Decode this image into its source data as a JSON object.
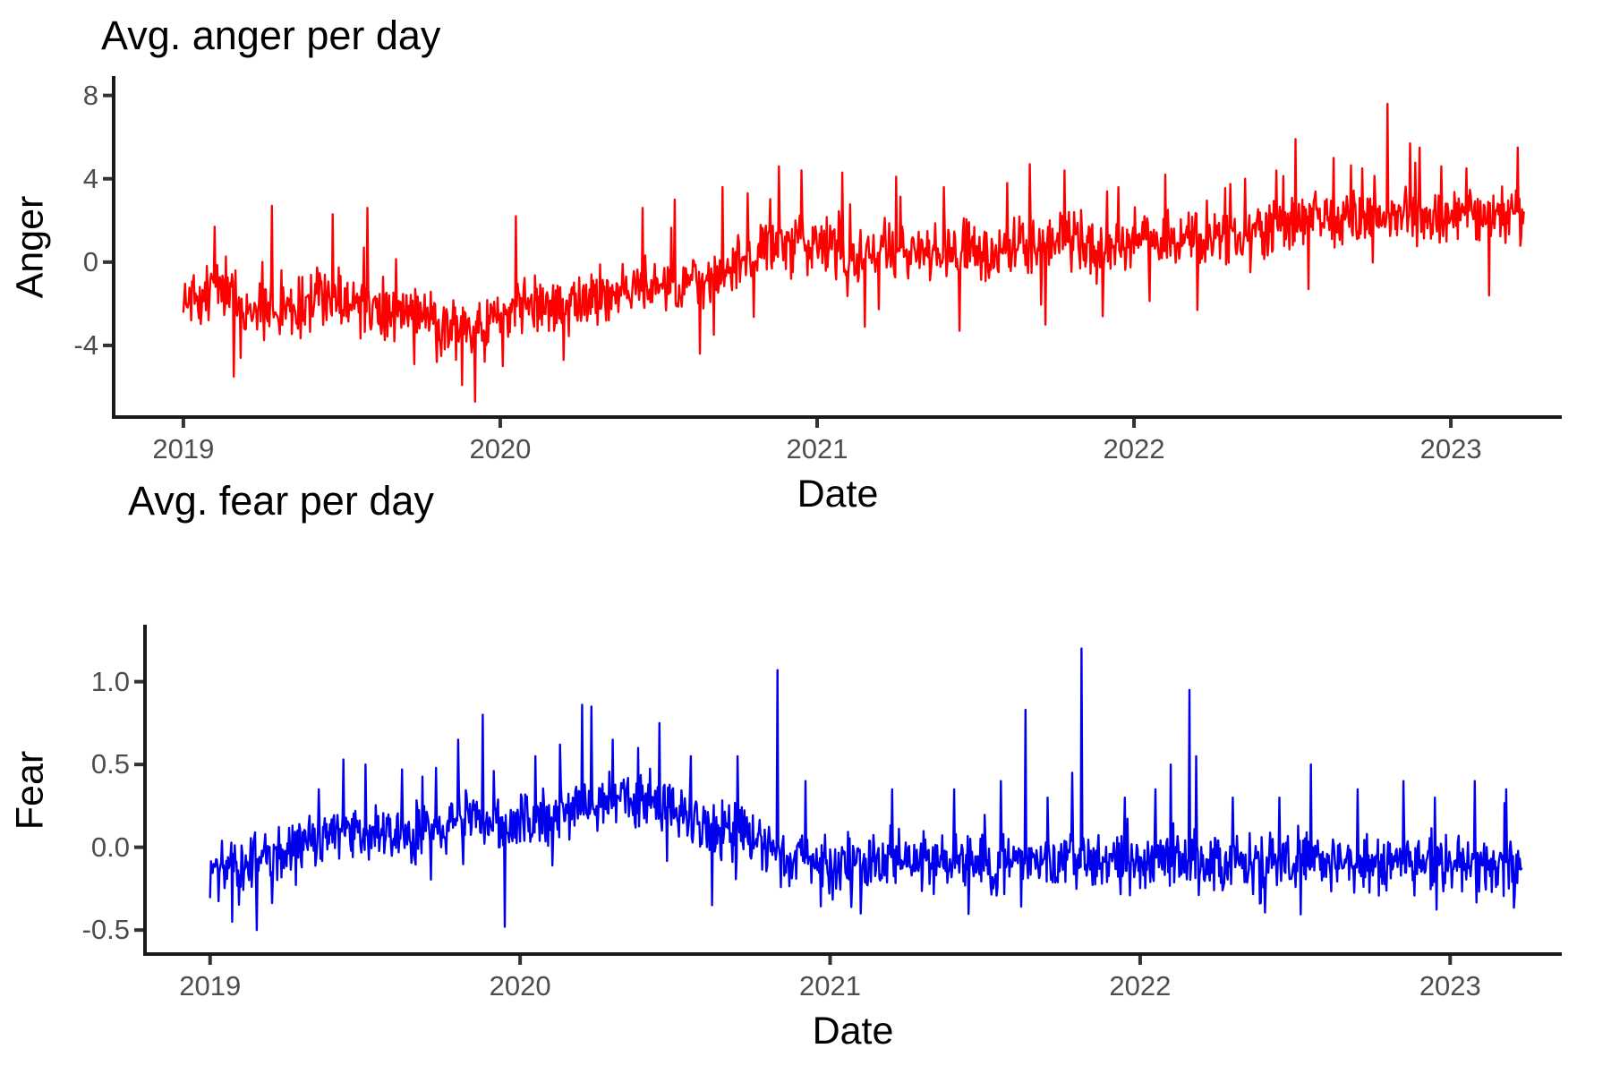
{
  "figure": {
    "background": "#ffffff",
    "axis_line_color": "#1a1a1a",
    "tick_mark_color": "#333333",
    "tick_label_color": "#4d4d4d",
    "text_color": "#000000"
  },
  "chart_data": [
    {
      "id": "anger",
      "type": "line",
      "title": "Avg. anger per day",
      "xlabel": "Date",
      "ylabel": "Anger",
      "line_color": "#ff0000",
      "grid": false,
      "legend": "none",
      "x_ticks": [
        "2019",
        "2020",
        "2021",
        "2022",
        "2023"
      ],
      "x_tick_values": [
        2019,
        2020,
        2021,
        2022,
        2023
      ],
      "y_ticks": [
        "8",
        "4",
        "0",
        "-4"
      ],
      "y_tick_values": [
        8,
        4,
        0,
        -4
      ],
      "x_domain": [
        2018.78,
        2023.35
      ],
      "ylim": [
        -7.44,
        8.93
      ],
      "x_range_years": [
        2019.0,
        2023.23
      ],
      "sampling": "daily",
      "monthly_mean": {
        "start": "2019-01",
        "values": [
          -1.7,
          -1.0,
          -2.6,
          -2.0,
          -2.3,
          -1.5,
          -1.8,
          -2.1,
          -2.4,
          -2.8,
          -3.0,
          -3.3,
          -2.0,
          -1.8,
          -2.3,
          -1.9,
          -1.4,
          -1.1,
          -0.8,
          -1.1,
          -0.4,
          0.3,
          1.0,
          0.8,
          0.7,
          0.4,
          0.8,
          0.4,
          0.5,
          0.7,
          0.5,
          0.9,
          0.9,
          1.1,
          0.7,
          0.9,
          1.1,
          1.4,
          1.3,
          1.2,
          1.4,
          1.6,
          1.9,
          1.9,
          2.1,
          2.3,
          2.2,
          2.0,
          2.1,
          2.2,
          2.3
        ]
      },
      "extremes": [
        [
          2019.1,
          1.7
        ],
        [
          2019.16,
          -5.5
        ],
        [
          2019.18,
          -4.6
        ],
        [
          2019.28,
          2.7
        ],
        [
          2019.47,
          2.3
        ],
        [
          2019.58,
          2.6
        ],
        [
          2019.73,
          -4.9
        ],
        [
          2019.8,
          -4.8
        ],
        [
          2019.88,
          -5.9
        ],
        [
          2019.92,
          -6.7
        ],
        [
          2020.05,
          2.2
        ],
        [
          2020.2,
          -4.7
        ],
        [
          2020.45,
          2.6
        ],
        [
          2020.55,
          3.0
        ],
        [
          2020.63,
          -4.4
        ],
        [
          2020.7,
          3.6
        ],
        [
          2020.78,
          3.3
        ],
        [
          2020.88,
          4.6
        ],
        [
          2020.95,
          4.4
        ],
        [
          2021.08,
          4.3
        ],
        [
          2021.15,
          -3.1
        ],
        [
          2021.25,
          4.1
        ],
        [
          2021.4,
          3.6
        ],
        [
          2021.45,
          -3.3
        ],
        [
          2021.6,
          3.8
        ],
        [
          2021.67,
          4.7
        ],
        [
          2021.72,
          -3.0
        ],
        [
          2021.78,
          4.4
        ],
        [
          2021.9,
          -2.6
        ],
        [
          2021.95,
          3.6
        ],
        [
          2022.1,
          4.2
        ],
        [
          2022.2,
          -2.3
        ],
        [
          2022.35,
          4.0
        ],
        [
          2022.45,
          4.4
        ],
        [
          2022.51,
          5.9
        ],
        [
          2022.55,
          -1.3
        ],
        [
          2022.63,
          5.0
        ],
        [
          2022.72,
          4.5
        ],
        [
          2022.8,
          7.6
        ],
        [
          2022.87,
          5.7
        ],
        [
          2022.9,
          5.5
        ],
        [
          2022.97,
          4.6
        ],
        [
          2023.05,
          4.5
        ],
        [
          2023.12,
          -1.6
        ],
        [
          2023.21,
          5.5
        ]
      ],
      "noise_amp": 1.0,
      "noise_clamp": [
        -3.0,
        2.6
      ]
    },
    {
      "id": "fear",
      "type": "line",
      "title": "Avg. fear per day",
      "xlabel": "Date",
      "ylabel": "Fear",
      "line_color": "#0000ee",
      "grid": false,
      "legend": "none",
      "x_ticks": [
        "2019",
        "2020",
        "2021",
        "2022",
        "2023"
      ],
      "x_tick_values": [
        2019,
        2020,
        2021,
        2022,
        2023
      ],
      "y_ticks": [
        "1.0",
        "0.5",
        "0.0",
        "-0.5"
      ],
      "y_tick_values": [
        1.0,
        0.5,
        0.0,
        -0.5
      ],
      "x_domain": [
        2018.79,
        2023.36
      ],
      "ylim": [
        -0.645,
        1.344
      ],
      "x_range_years": [
        2019.0,
        2023.23
      ],
      "sampling": "daily",
      "monthly_mean": {
        "start": "2019-01",
        "values": [
          -0.12,
          -0.1,
          -0.05,
          0.0,
          0.08,
          0.1,
          0.1,
          0.05,
          0.1,
          0.18,
          0.18,
          0.15,
          0.18,
          0.22,
          0.28,
          0.3,
          0.28,
          0.25,
          0.18,
          0.1,
          0.08,
          0.0,
          -0.05,
          -0.1,
          -0.1,
          -0.1,
          -0.06,
          -0.1,
          -0.1,
          -0.08,
          -0.1,
          -0.06,
          -0.1,
          -0.08,
          -0.08,
          -0.1,
          -0.08,
          -0.05,
          -0.08,
          -0.1,
          -0.1,
          -0.1,
          -0.08,
          -0.1,
          -0.1,
          -0.1,
          -0.12,
          -0.1,
          -0.1,
          -0.13,
          -0.15
        ]
      },
      "extremes": [
        [
          2019.07,
          -0.45
        ],
        [
          2019.15,
          -0.5
        ],
        [
          2019.35,
          0.35
        ],
        [
          2019.43,
          0.53
        ],
        [
          2019.5,
          0.5
        ],
        [
          2019.62,
          0.47
        ],
        [
          2019.73,
          0.48
        ],
        [
          2019.8,
          0.65
        ],
        [
          2019.88,
          0.8
        ],
        [
          2019.95,
          -0.48
        ],
        [
          2020.05,
          0.55
        ],
        [
          2020.13,
          0.62
        ],
        [
          2020.2,
          0.86
        ],
        [
          2020.23,
          0.85
        ],
        [
          2020.3,
          0.65
        ],
        [
          2020.38,
          0.6
        ],
        [
          2020.45,
          0.75
        ],
        [
          2020.55,
          0.55
        ],
        [
          2020.62,
          -0.35
        ],
        [
          2020.7,
          0.55
        ],
        [
          2020.83,
          1.07
        ],
        [
          2020.92,
          0.4
        ],
        [
          2021.1,
          -0.4
        ],
        [
          2021.2,
          0.35
        ],
        [
          2021.4,
          0.35
        ],
        [
          2021.55,
          0.4
        ],
        [
          2021.63,
          0.83
        ],
        [
          2021.7,
          0.3
        ],
        [
          2021.78,
          0.45
        ],
        [
          2021.81,
          1.2
        ],
        [
          2021.95,
          0.3
        ],
        [
          2022.05,
          0.35
        ],
        [
          2022.1,
          0.5
        ],
        [
          2022.16,
          0.95
        ],
        [
          2022.18,
          0.55
        ],
        [
          2022.3,
          0.3
        ],
        [
          2022.45,
          0.3
        ],
        [
          2022.55,
          0.5
        ],
        [
          2022.7,
          0.35
        ],
        [
          2022.85,
          0.4
        ],
        [
          2022.95,
          0.3
        ],
        [
          2023.08,
          0.4
        ],
        [
          2023.18,
          0.35
        ]
      ],
      "noise_amp": 0.12,
      "noise_clamp": [
        -0.32,
        0.42
      ]
    }
  ]
}
